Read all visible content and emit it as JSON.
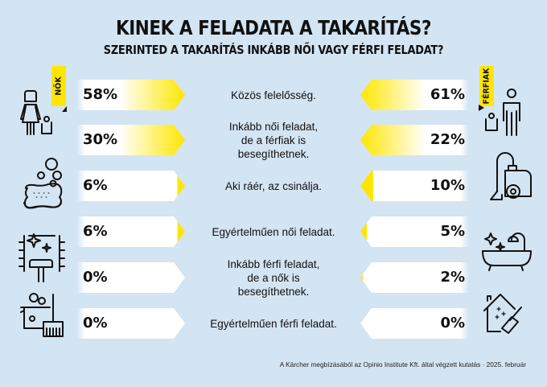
{
  "header": {
    "title": "KINEK A FELADATA A TAKARÍTÁS?",
    "subtitle": "SZERINTED A TAKARÍTÁS INKÁBB NŐI VAGY FÉRFI FELADAT?"
  },
  "legend": {
    "women": "NŐK",
    "men": "FÉRFIAK"
  },
  "colors": {
    "background": "#d3e4f3",
    "accent": "#ffe600",
    "bar_base": "#ffffff",
    "text": "#111111"
  },
  "rows": [
    {
      "label": "Közös felelősség.",
      "women": "58%",
      "men": "61%"
    },
    {
      "label": "Inkább női feladat,\nde a férfiak is\nbesegíthetnek.",
      "women": "30%",
      "men": "22%"
    },
    {
      "label": "Aki ráér, az csinálja.",
      "women": "6%",
      "men": "10%"
    },
    {
      "label": "Egyértelműen női feladat.",
      "women": "6%",
      "men": "5%"
    },
    {
      "label": "Inkább férfi feladat,\nde a nők is\nbesegíthetnek.",
      "women": "0%",
      "men": "2%"
    },
    {
      "label": "Egyértelműen férfi feladat.",
      "women": "0%",
      "men": "0%"
    }
  ],
  "icons": {
    "left": [
      "woman-with-bin-icon",
      "sponge-bubbles-icon",
      "mopping-floor-icon",
      "bucket-broom-icon"
    ],
    "right": [
      "man-with-bin-icon",
      "vacuum-cleaner-icon",
      "bathtub-sparkle-icon",
      "clean-house-broom-icon"
    ]
  },
  "footer": {
    "source": "A Kärcher megbízásából az Opinio Institute Kft. által végzett kutatás · 2025. február"
  },
  "chart_data": {
    "type": "bar",
    "title": "KINEK A FELADATA A TAKARÍTÁS?",
    "subtitle": "SZERINTED A TAKARÍTÁS INKÁBB NŐI VAGY FÉRFI FELADAT?",
    "categories": [
      "Közös felelősség.",
      "Inkább női feladat, de a férfiak is besegíthetnek.",
      "Aki ráér, az csinálja.",
      "Egyértelműen női feladat.",
      "Inkább férfi feladat, de a nők is besegíthetnek.",
      "Egyértelműen férfi feladat."
    ],
    "series": [
      {
        "name": "NŐK",
        "values": [
          58,
          30,
          6,
          6,
          0,
          0
        ]
      },
      {
        "name": "FÉRFIAK",
        "values": [
          61,
          22,
          10,
          5,
          2,
          0
        ]
      }
    ],
    "unit": "%",
    "layout": "butterfly; women bars on left pointing right, men bars on right pointing left; yellow gradient intensity = value",
    "ylim": [
      0,
      100
    ],
    "grid": false,
    "legend_position": "top-left (NŐK) / top-right (FÉRFIAK) tags",
    "annotation": "A Kärcher megbízásából az Opinio Institute Kft. által végzett kutatás · 2025. február"
  }
}
